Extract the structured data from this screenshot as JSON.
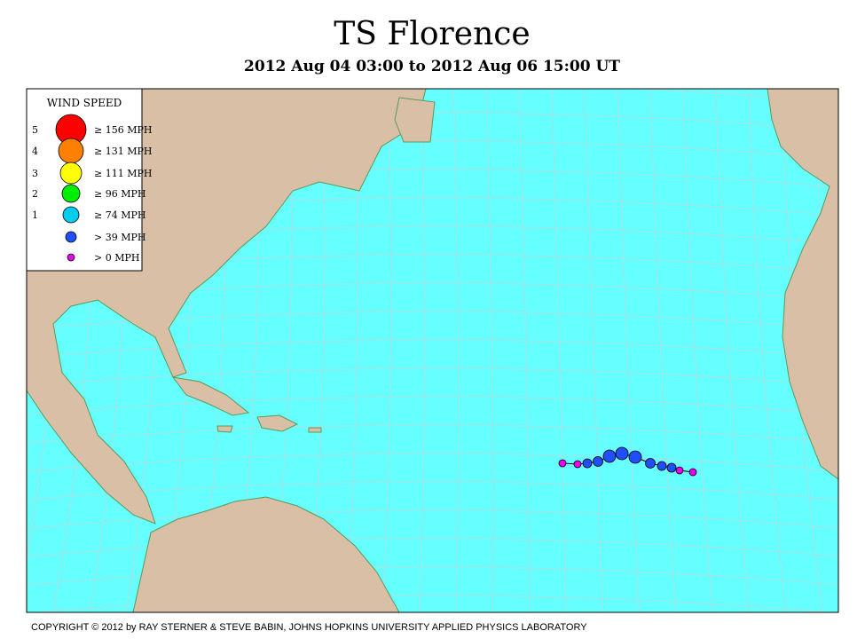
{
  "title": "TS Florence",
  "subtitle": "2012 Aug 04 03:00 to 2012 Aug 06 15:00 UT",
  "legend": {
    "title": "WIND SPEED",
    "items": [
      {
        "category": "5",
        "label": "≥ 156 MPH",
        "color": "#ff0000"
      },
      {
        "category": "4",
        "label": "≥ 131 MPH",
        "color": "#ff7f00"
      },
      {
        "category": "3",
        "label": "≥ 111 MPH",
        "color": "#ffff00"
      },
      {
        "category": "2",
        "label": "≥ 96 MPH",
        "color": "#00ee00"
      },
      {
        "category": "1",
        "label": "≥ 74 MPH",
        "color": "#00ccee"
      },
      {
        "label": "> 39 MPH",
        "color": "#1f4fff"
      },
      {
        "label": "> 0 MPH",
        "color": "#ee00ee"
      }
    ]
  },
  "copyright": "COPYRIGHT © 2012 by RAY STERNER & STEVE BABIN, JOHNS HOPKINS UNIVERSITY APPLIED PHYSICS LABORATORY"
}
